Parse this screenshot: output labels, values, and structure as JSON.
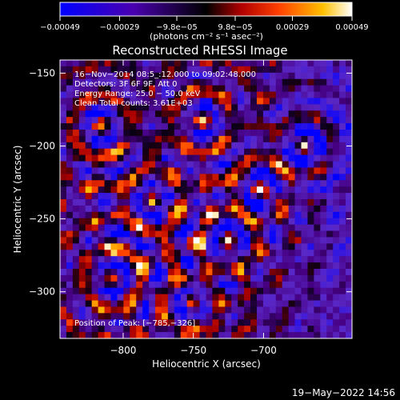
{
  "colorbar": {
    "tick_labels": [
      "−0.00049",
      "−0.00029",
      "−9.8e−05",
      "9.8e−05",
      "0.00029",
      "0.00049"
    ],
    "tick_values": [
      -0.00049,
      -0.00029,
      -9.8e-05,
      9.8e-05,
      0.00029,
      0.00049
    ],
    "range": [
      -0.00049,
      0.00049
    ],
    "unit_label": "(photons cm⁻² s⁻¹ asec⁻²)",
    "colors": [
      "#0000ff",
      "#4a00b0",
      "#000000",
      "#b00000",
      "#ff4000",
      "#ffc000",
      "#ffffff"
    ]
  },
  "chart_data": {
    "type": "heatmap",
    "title": "Reconstructed RHESSI Image",
    "xlabel": "Heliocentric X (arcsec)",
    "ylabel": "Heliocentric Y (arcsec)",
    "xlim": [
      -845,
      -637
    ],
    "ylim": [
      -332,
      -141
    ],
    "xticks": [
      -800,
      -750,
      -700
    ],
    "xtick_labels": [
      "−800",
      "−750",
      "−700"
    ],
    "yticks": [
      -150,
      -200,
      -250,
      -300
    ],
    "ytick_labels": [
      "−150",
      "−200",
      "−250",
      "−300"
    ],
    "annotations": [
      "16−Nov−2014 08:5_:12.000 to 09:02:48.000",
      "Detectors: 3F 6F 9F, Att 0",
      "Energy Range: 25.0 − 50.0 keV",
      "Clean    Total counts: 3.61E+03"
    ],
    "peak_label": "Position of Peak: [−785,−326]",
    "peak": [
      -785,
      -326
    ]
  },
  "footer": {
    "timestamp": "19−May−2022 14:56"
  }
}
